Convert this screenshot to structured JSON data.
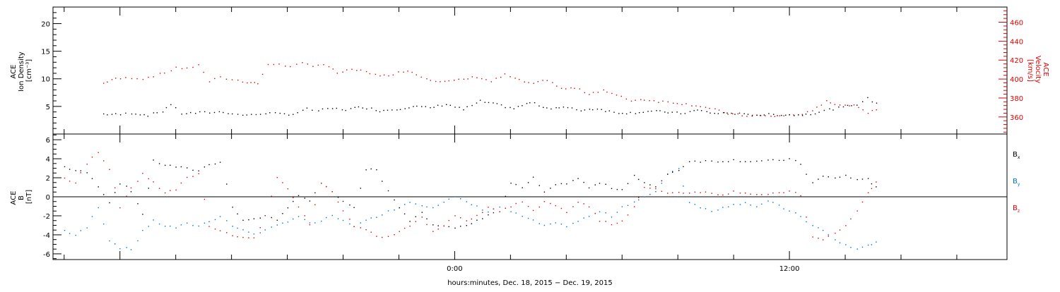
{
  "chart_data": [
    {
      "type": "scatter",
      "panel": "top",
      "ylabel": "ACE Ion Density [cm⁻³]",
      "ylabel_lines": [
        "ACE",
        "Ion Density",
        "[cm⁻³]"
      ],
      "ylim": [
        0,
        23
      ],
      "yticks": [
        5,
        10,
        15,
        20
      ],
      "ylabel_right": "ACE Velocity [km/s]",
      "ylabel_right_lines": [
        "ACE",
        "Velocity",
        "[km/s]"
      ],
      "ylim_right": [
        342,
        476
      ],
      "yticks_right": [
        360,
        380,
        400,
        420,
        440,
        460
      ],
      "series": [
        {
          "key": "density",
          "axis": "left",
          "color": "#000000",
          "x": [
            -12.6,
            -12.0,
            -11.6,
            -11.0,
            -10.5,
            -10.2,
            -9.8,
            -9.3,
            -8.8,
            -8.3,
            -7.8,
            -7.3,
            -6.8,
            -6.3,
            -5.8,
            -5.3,
            -4.9,
            -4.4,
            -3.9,
            -3.3,
            -2.7,
            -2.1,
            -1.5,
            -0.9,
            -0.3,
            0.3,
            0.9,
            1.5,
            2.1,
            2.7,
            3.3,
            3.9,
            4.5,
            5.1,
            5.7,
            6.3,
            6.9,
            7.5,
            8.1,
            8.7,
            9.3,
            9.9,
            10.5,
            11.1,
            11.7,
            12.3,
            12.9,
            13.4,
            13.9,
            14.4,
            14.8,
            15.1
          ],
          "values": [
            3.7,
            3.6,
            3.9,
            3.5,
            4.2,
            5.5,
            3.8,
            3.9,
            4.0,
            4.1,
            3.6,
            3.5,
            3.9,
            3.7,
            3.7,
            4.6,
            4.3,
            4.7,
            4.5,
            5.0,
            4.3,
            4.6,
            5.1,
            4.8,
            5.5,
            4.5,
            6.0,
            5.4,
            4.7,
            5.8,
            4.8,
            4.9,
            4.4,
            4.7,
            4.0,
            3.9,
            4.2,
            4.1,
            3.8,
            4.4,
            3.8,
            3.9,
            3.5,
            3.6,
            3.6,
            3.5,
            3.9,
            4.5,
            4.9,
            5.5,
            6.5,
            5.6
          ]
        },
        {
          "key": "velocity",
          "axis": "right",
          "color": "#e00000",
          "x": [
            -12.6,
            -12.3,
            -12.0,
            -11.6,
            -11.2,
            -10.8,
            -10.4,
            -10.0,
            -9.6,
            -9.2,
            -8.8,
            -8.4,
            -8.0,
            -7.6,
            -7.3,
            -7.1,
            -6.7,
            -6.3,
            -5.9,
            -5.5,
            -5.1,
            -4.7,
            -4.2,
            -3.7,
            -3.2,
            -2.7,
            -2.2,
            -1.7,
            -1.2,
            -0.7,
            -0.2,
            0.3,
            0.8,
            1.3,
            1.8,
            2.3,
            2.8,
            3.3,
            3.8,
            4.3,
            4.8,
            5.3,
            5.8,
            6.3,
            6.8,
            7.3,
            7.8,
            8.3,
            8.8,
            9.3,
            9.8,
            10.3,
            10.8,
            11.3,
            11.8,
            12.3,
            12.8,
            13.3,
            13.8,
            14.3,
            14.8,
            15.1
          ],
          "values": [
            396,
            400,
            401,
            402,
            401,
            404,
            407,
            413,
            411,
            416,
            398,
            402,
            400,
            398,
            397,
            396,
            415,
            417,
            413,
            417,
            415,
            416,
            407,
            410,
            409,
            403,
            406,
            410,
            403,
            399,
            398,
            400,
            403,
            398,
            405,
            399,
            395,
            400,
            390,
            391,
            385,
            389,
            383,
            378,
            379,
            377,
            376,
            374,
            372,
            368,
            364,
            362,
            362,
            361,
            362,
            363,
            366,
            378,
            372,
            374,
            365,
            369
          ]
        }
      ]
    },
    {
      "type": "scatter",
      "panel": "bottom",
      "ylabel": "ACE B [nT]",
      "ylabel_lines": [
        "ACE",
        "B",
        "[nT]"
      ],
      "ylim": [
        -6.6,
        6.6
      ],
      "yticks": [
        -6,
        -4,
        -2,
        0,
        2,
        4,
        6
      ],
      "xlabel": "hours:minutes, Dec. 18, 2015 − Dec. 19, 2015",
      "xticks": [
        {
          "x": 0,
          "label": "0:00"
        },
        {
          "x": 12,
          "label": "12:00"
        }
      ],
      "xlim": [
        -14.4,
        19.8
      ],
      "legend": [
        {
          "label": "B",
          "sub": "x",
          "color": "#000000"
        },
        {
          "label": "B",
          "sub": "y",
          "color": "#0070c0"
        },
        {
          "label": "B",
          "sub": "z",
          "color": "#e00000"
        }
      ],
      "series": [
        {
          "key": "bx",
          "color": "#000000",
          "x": [
            -14.0,
            -13.6,
            -13.2,
            -12.8,
            -12.4,
            -12.0,
            -11.6,
            -11.2,
            -10.8,
            -10.4,
            -10.0,
            -9.6,
            -9.2,
            -8.8,
            -8.4,
            -8.0,
            -7.6,
            -7.2,
            -6.8,
            -6.4,
            -6.0,
            -5.6,
            -5.2,
            -4.8,
            -4.4,
            -4.0,
            -3.6,
            -3.2,
            -2.8,
            -2.4,
            -2.0,
            -1.6,
            -1.2,
            -0.8,
            -0.4,
            0.0,
            0.4,
            0.8,
            1.2,
            1.6,
            2.0,
            2.4,
            2.8,
            3.2,
            3.6,
            4.0,
            4.4,
            4.8,
            5.2,
            5.6,
            6.0,
            6.4,
            6.8,
            7.2,
            7.6,
            8.0,
            8.4,
            8.8,
            9.2,
            9.6,
            10.0,
            10.4,
            10.8,
            11.2,
            11.6,
            12.0,
            12.4,
            12.8,
            13.2,
            13.6,
            14.0,
            14.4,
            14.8,
            15.1
          ],
          "values": [
            3.2,
            2.8,
            2.6,
            1.2,
            -0.5,
            1.5,
            0.6,
            -1.8,
            3.8,
            3.4,
            3.2,
            3.0,
            2.8,
            3.5,
            3.7,
            -1.0,
            -2.5,
            -2.2,
            -2.0,
            -2.5,
            -1.0,
            0.2,
            -0.5,
            1.5,
            0.5,
            -0.5,
            -1.0,
            2.8,
            3.0,
            0.6,
            -1.0,
            -2.5,
            -1.5,
            -2.8,
            -3.0,
            -3.3,
            -3.0,
            -2.5,
            -1.8,
            -1.5,
            1.5,
            1.0,
            2.0,
            0.5,
            1.2,
            1.5,
            2.0,
            1.0,
            1.5,
            1.0,
            0.8,
            2.3,
            1.5,
            1.0,
            2.5,
            2.8,
            3.8,
            3.8,
            3.8,
            3.8,
            3.9,
            3.8,
            3.8,
            3.8,
            3.9,
            4.0,
            3.5,
            1.5,
            2.2,
            2.0,
            2.3,
            1.8,
            2.0,
            1.0
          ]
        },
        {
          "key": "by",
          "color": "#0070c0",
          "x": [
            -14.0,
            -13.6,
            -13.2,
            -12.8,
            -12.4,
            -12.0,
            -11.6,
            -11.2,
            -10.8,
            -10.4,
            -10.0,
            -9.6,
            -9.2,
            -8.8,
            -8.4,
            -8.0,
            -7.6,
            -7.2,
            -6.8,
            -6.4,
            -6.0,
            -5.6,
            -5.2,
            -4.8,
            -4.4,
            -4.0,
            -3.6,
            -3.2,
            -2.8,
            -2.4,
            -2.0,
            -1.6,
            -1.2,
            -0.8,
            -0.4,
            0.0,
            0.4,
            0.8,
            1.2,
            1.6,
            2.0,
            2.4,
            2.8,
            3.2,
            3.6,
            4.0,
            4.4,
            4.8,
            5.2,
            5.6,
            6.0,
            6.4,
            6.8,
            7.2,
            7.6,
            8.0,
            8.4,
            8.8,
            9.2,
            9.6,
            10.0,
            10.4,
            10.8,
            11.2,
            11.6,
            12.0,
            12.4,
            12.8,
            13.2,
            13.6,
            14.0,
            14.4,
            14.8,
            15.1
          ],
          "values": [
            -3.5,
            -4.0,
            -3.2,
            -1.0,
            -4.5,
            -5.3,
            -5.5,
            -3.5,
            -2.5,
            -3.0,
            -3.2,
            -2.8,
            -3.0,
            -2.5,
            -2.0,
            -3.0,
            -3.5,
            -3.8,
            -3.5,
            -3.0,
            -2.5,
            -2.0,
            -2.8,
            -2.5,
            -2.0,
            -2.5,
            -3.0,
            -2.5,
            -2.0,
            -1.5,
            -1.0,
            -0.5,
            -0.8,
            -1.0,
            -0.5,
            0.0,
            -0.5,
            -1.0,
            -1.5,
            -1.0,
            -1.5,
            -2.0,
            -2.5,
            -3.0,
            -2.8,
            -3.0,
            -2.5,
            -2.0,
            -1.5,
            -2.0,
            -1.0,
            -0.5,
            0.0,
            0.5,
            2.5,
            3.0,
            -0.5,
            -1.0,
            -1.5,
            -1.0,
            -0.8,
            -0.5,
            -1.0,
            -0.5,
            -0.8,
            -1.5,
            -2.0,
            -3.0,
            -3.5,
            -4.5,
            -5.0,
            -5.5,
            -5.0,
            -4.8
          ]
        },
        {
          "key": "bz",
          "color": "#e00000",
          "x": [
            -14.0,
            -13.6,
            -13.2,
            -12.8,
            -12.4,
            -12.0,
            -11.6,
            -11.2,
            -10.8,
            -10.4,
            -10.0,
            -9.6,
            -9.2,
            -8.8,
            -8.4,
            -8.0,
            -7.6,
            -7.2,
            -6.8,
            -6.4,
            -6.0,
            -5.6,
            -5.2,
            -4.8,
            -4.4,
            -4.0,
            -3.6,
            -3.2,
            -2.8,
            -2.4,
            -2.0,
            -1.6,
            -1.2,
            -0.8,
            -0.4,
            0.0,
            0.4,
            0.8,
            1.2,
            1.6,
            2.0,
            2.4,
            2.8,
            3.2,
            3.6,
            4.0,
            4.4,
            4.8,
            5.2,
            5.6,
            6.0,
            6.4,
            6.8,
            7.2,
            7.6,
            8.0,
            8.4,
            8.8,
            9.2,
            9.6,
            10.0,
            10.4,
            10.8,
            11.2,
            11.6,
            12.0,
            12.4,
            12.8,
            13.2,
            13.6,
            14.0,
            14.4,
            14.8,
            15.1
          ],
          "values": [
            2.0,
            1.5,
            3.5,
            4.8,
            3.0,
            -1.0,
            1.0,
            2.5,
            1.5,
            0.5,
            0.8,
            2.0,
            2.5,
            -3.0,
            -3.5,
            -4.0,
            -4.3,
            -4.2,
            -2.0,
            2.0,
            1.0,
            -1.0,
            -3.0,
            1.5,
            0.5,
            -1.5,
            -3.0,
            -3.5,
            -4.0,
            -4.2,
            -3.5,
            -3.0,
            -2.0,
            -3.5,
            -3.0,
            -2.0,
            -2.5,
            -2.0,
            -1.0,
            -1.5,
            -1.0,
            -0.5,
            -1.5,
            -0.5,
            -1.0,
            -1.5,
            -0.5,
            -1.0,
            -2.5,
            -2.8,
            -2.5,
            -1.0,
            1.0,
            0.8,
            0.5,
            0.5,
            0.5,
            0.6,
            0.4,
            0.3,
            0.6,
            0.5,
            0.3,
            0.2,
            0.5,
            0.6,
            0.2,
            -4.2,
            -4.5,
            -3.8,
            -3.0,
            -1.5,
            0.5,
            1.5
          ]
        }
      ]
    }
  ]
}
